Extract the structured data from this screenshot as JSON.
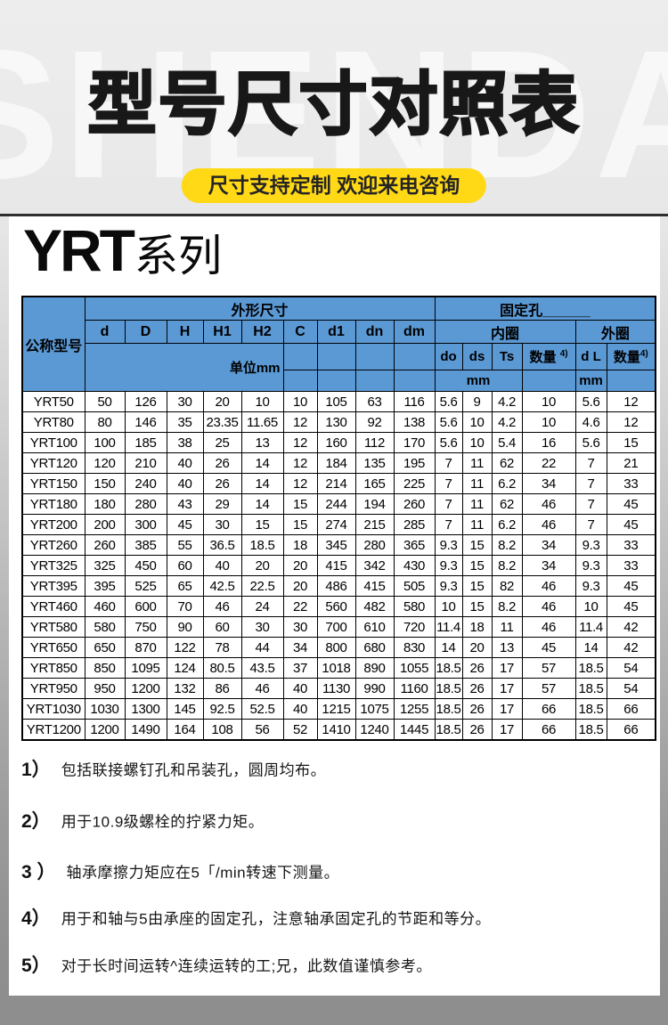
{
  "page": {
    "watermark": "SHENDA",
    "title": "型号尺寸对照表",
    "banner": "尺寸支持定制  欢迎来电咨询",
    "series": {
      "latin": "YRT",
      "cjk": "系列"
    }
  },
  "colors": {
    "header_blue": "#5B99D5",
    "banner_yellow": "#FFD916",
    "panel_white": "#FFFFFF",
    "page_gray_top": "#EDEDED",
    "page_gray_bottom": "#8E8E8E"
  },
  "table": {
    "corner_label": "公称型号",
    "outline_group": "外形尺寸",
    "fixing_group": "固定孔______",
    "dim_cols": [
      "d",
      "D",
      "H",
      "H1",
      "H2",
      "C",
      "d1",
      "dn",
      "dm"
    ],
    "inner_ring": "内圈",
    "outer_ring": "外圈",
    "unit_note": "单位mm",
    "inner_sub": [
      "do",
      "ds",
      "Ts"
    ],
    "qty_label": "数量",
    "qty_sup": "4)",
    "outer_dl": "d L",
    "unit_mm": "mm",
    "rows": [
      [
        "YRT50",
        "50",
        "126",
        "30",
        "20",
        "10",
        "10",
        "105",
        "63",
        "116",
        "5.6",
        "9",
        "4.2",
        "10",
        "5.6",
        "12"
      ],
      [
        "YRT80",
        "80",
        "146",
        "35",
        "23.35",
        "11.65",
        "12",
        "130",
        "92",
        "138",
        "5.6",
        "10",
        "4.2",
        "10",
        "4.6",
        "12"
      ],
      [
        "YRT100",
        "100",
        "185",
        "38",
        "25",
        "13",
        "12",
        "160",
        "112",
        "170",
        "5.6",
        "10",
        "5.4",
        "16",
        "5.6",
        "15"
      ],
      [
        "YRT120",
        "120",
        "210",
        "40",
        "26",
        "14",
        "12",
        "184",
        "135",
        "195",
        "7",
        "11",
        "62",
        "22",
        "7",
        "21"
      ],
      [
        "YRT150",
        "150",
        "240",
        "40",
        "26",
        "14",
        "12",
        "214",
        "165",
        "225",
        "7",
        "11",
        "6.2",
        "34",
        "7",
        "33"
      ],
      [
        "YRT180",
        "180",
        "280",
        "43",
        "29",
        "14",
        "15",
        "244",
        "194",
        "260",
        "7",
        "11",
        "62",
        "46",
        "7",
        "45"
      ],
      [
        "YRT200",
        "200",
        "300",
        "45",
        "30",
        "15",
        "15",
        "274",
        "215",
        "285",
        "7",
        "11",
        "6.2",
        "46",
        "7",
        "45"
      ],
      [
        "YRT260",
        "260",
        "385",
        "55",
        "36.5",
        "18.5",
        "18",
        "345",
        "280",
        "365",
        "9.3",
        "15",
        "8.2",
        "34",
        "9.3",
        "33"
      ],
      [
        "YRT325",
        "325",
        "450",
        "60",
        "40",
        "20",
        "20",
        "415",
        "342",
        "430",
        "9.3",
        "15",
        "8.2",
        "34",
        "9.3",
        "33"
      ],
      [
        "YRT395",
        "395",
        "525",
        "65",
        "42.5",
        "22.5",
        "20",
        "486",
        "415",
        "505",
        "9.3",
        "15",
        "82",
        "46",
        "9.3",
        "45"
      ],
      [
        "YRT460",
        "460",
        "600",
        "70",
        "46",
        "24",
        "22",
        "560",
        "482",
        "580",
        "10",
        "15",
        "8.2",
        "46",
        "10",
        "45"
      ],
      [
        "YRT580",
        "580",
        "750",
        "90",
        "60",
        "30",
        "30",
        "700",
        "610",
        "720",
        "11.4",
        "18",
        "11",
        "46",
        "11.4",
        "42"
      ],
      [
        "YRT650",
        "650",
        "870",
        "122",
        "78",
        "44",
        "34",
        "800",
        "680",
        "830",
        "14",
        "20",
        "13",
        "45",
        "14",
        "42"
      ],
      [
        "YRT850",
        "850",
        "1095",
        "124",
        "80.5",
        "43.5",
        "37",
        "1018",
        "890",
        "1055",
        "18.5",
        "26",
        "17",
        "57",
        "18.5",
        "54"
      ],
      [
        "YRT950",
        "950",
        "1200",
        "132",
        "86",
        "46",
        "40",
        "1130",
        "990",
        "1160",
        "18.5",
        "26",
        "17",
        "57",
        "18.5",
        "54"
      ],
      [
        "YRT1030",
        "1030",
        "1300",
        "145",
        "92.5",
        "52.5",
        "40",
        "1215",
        "1075",
        "1255",
        "18.5",
        "26",
        "17",
        "66",
        "18.5",
        "66"
      ],
      [
        "YRT1200",
        "1200",
        "1490",
        "164",
        "108",
        "56",
        "52",
        "1410",
        "1240",
        "1445",
        "18.5",
        "26",
        "17",
        "66",
        "18.5",
        "66"
      ]
    ]
  },
  "footnotes": [
    {
      "num": "1）",
      "text": "包括联接螺钉孔和吊装孔，圆周均布。"
    },
    {
      "num": "2）",
      "text": "用于10.9级螺栓的拧紧力矩。"
    },
    {
      "num": "3 ）",
      "text": "轴承摩擦力矩应在5「/min转速下测量。"
    },
    {
      "num": "4）",
      "text": "用于和轴与5由承座的固定孔，注意轴承固定孔的节距和等分。"
    },
    {
      "num": "5）",
      "text": "对于长时间运转^连续运转的工;兄，此数值谨慎参考。"
    }
  ]
}
